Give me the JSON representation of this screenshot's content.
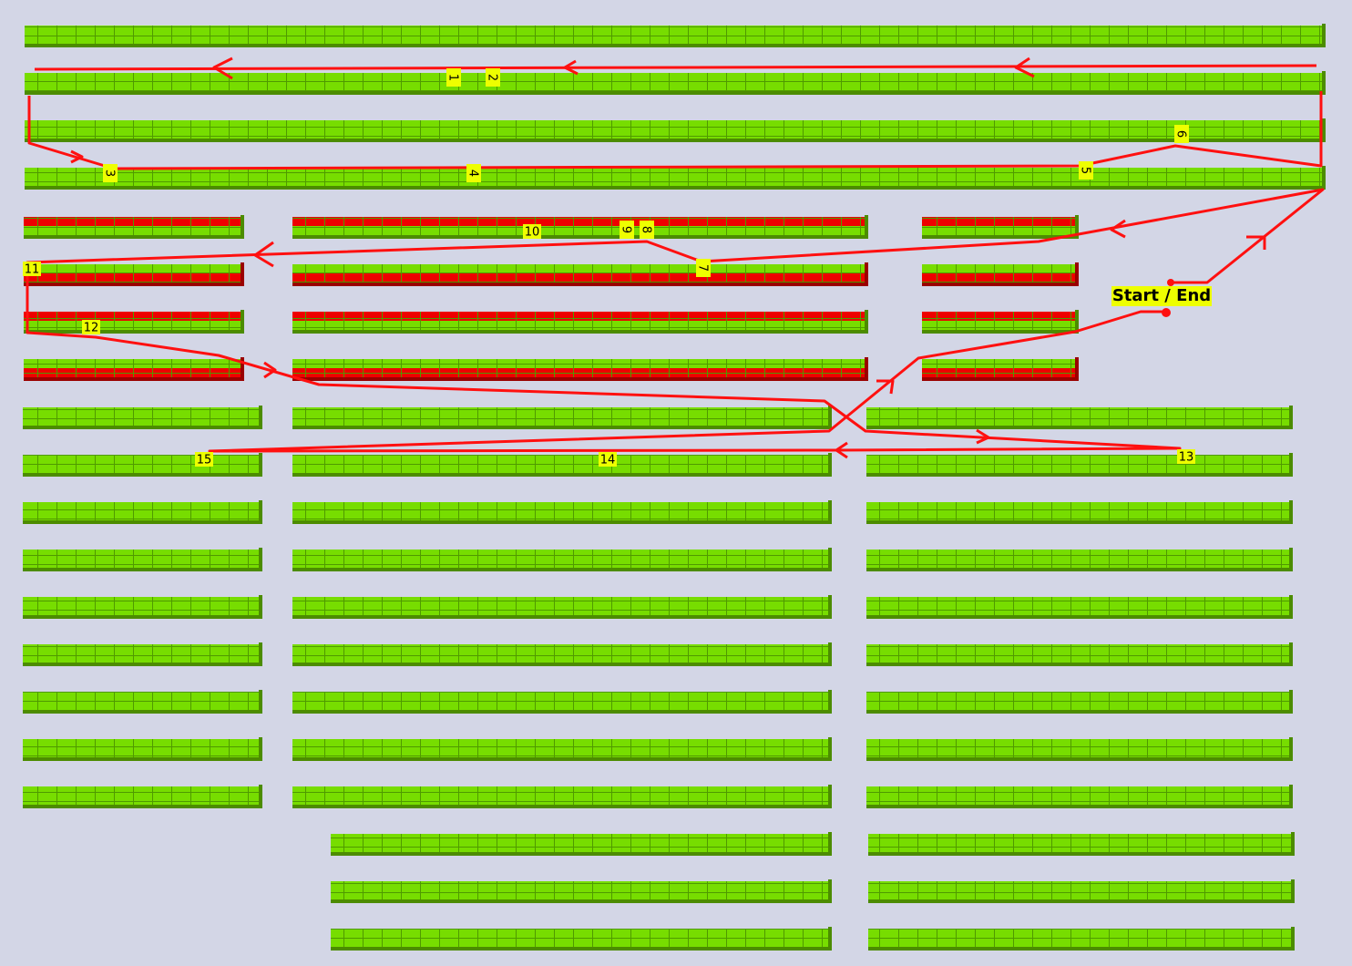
{
  "stops": [
    "1",
    "2",
    "3",
    "4",
    "5",
    "6",
    "7",
    "8",
    "9",
    "10",
    "11",
    "12",
    "13",
    "14",
    "15"
  ],
  "start_label": "Start / End"
}
